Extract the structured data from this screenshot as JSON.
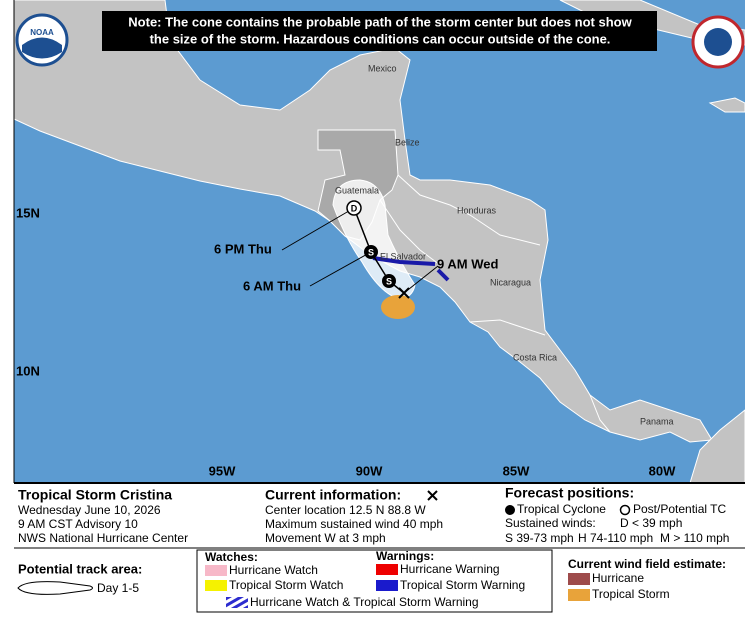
{
  "note": [
    "Note: The cone contains the probable path of the storm center but does not show",
    "the size of the storm. Hazardous conditions can occur outside of the cone."
  ],
  "logo": "NOAA",
  "map": {
    "places": [
      "Mexico",
      "Belize",
      "Guatemala",
      "Honduras",
      "El Salvador",
      "Nicaragua",
      "Costa Rica",
      "Panama"
    ],
    "lat_labels": [
      "15N",
      "10N"
    ],
    "lon_labels": [
      "95W",
      "90W",
      "85W",
      "80W"
    ],
    "track_labels": [
      "6 PM Thu",
      "6 AM Thu",
      "9 AM Wed"
    ],
    "markers": [
      "D",
      "S",
      "S"
    ]
  },
  "storm": {
    "name": "Tropical Storm Cristina",
    "lines": [
      "Wednesday June 10, 2026",
      "9 AM CST Advisory 10",
      "NWS National Hurricane Center"
    ]
  },
  "current": {
    "title": "Current information:",
    "lines": [
      "Center location 12.5 N 88.8 W",
      "Maximum sustained wind 40 mph",
      "Movement W at 3 mph"
    ]
  },
  "forecast": {
    "title": "Forecast positions:",
    "tropical": "Tropical Cyclone",
    "post": "Post/Potential TC",
    "winds": "Sustained winds:",
    "d": "D < 39 mph",
    "s": "S 39-73 mph",
    "h": "H 74-110 mph",
    "m": "M > 110 mph"
  },
  "track_area": {
    "title": "Potential track area:",
    "day": "Day 1-5"
  },
  "watches": {
    "title": "Watches:",
    "items": [
      "Hurricane Watch",
      "Tropical Storm Watch"
    ]
  },
  "warnings": {
    "title": "Warnings:",
    "items": [
      "Hurricane Warning",
      "Tropical Storm Warning"
    ]
  },
  "combined": "Hurricane Watch & Tropical Storm Warning",
  "wind_field": {
    "title": "Current wind field estimate:",
    "items": [
      "Hurricane",
      "Tropical Storm"
    ]
  }
}
